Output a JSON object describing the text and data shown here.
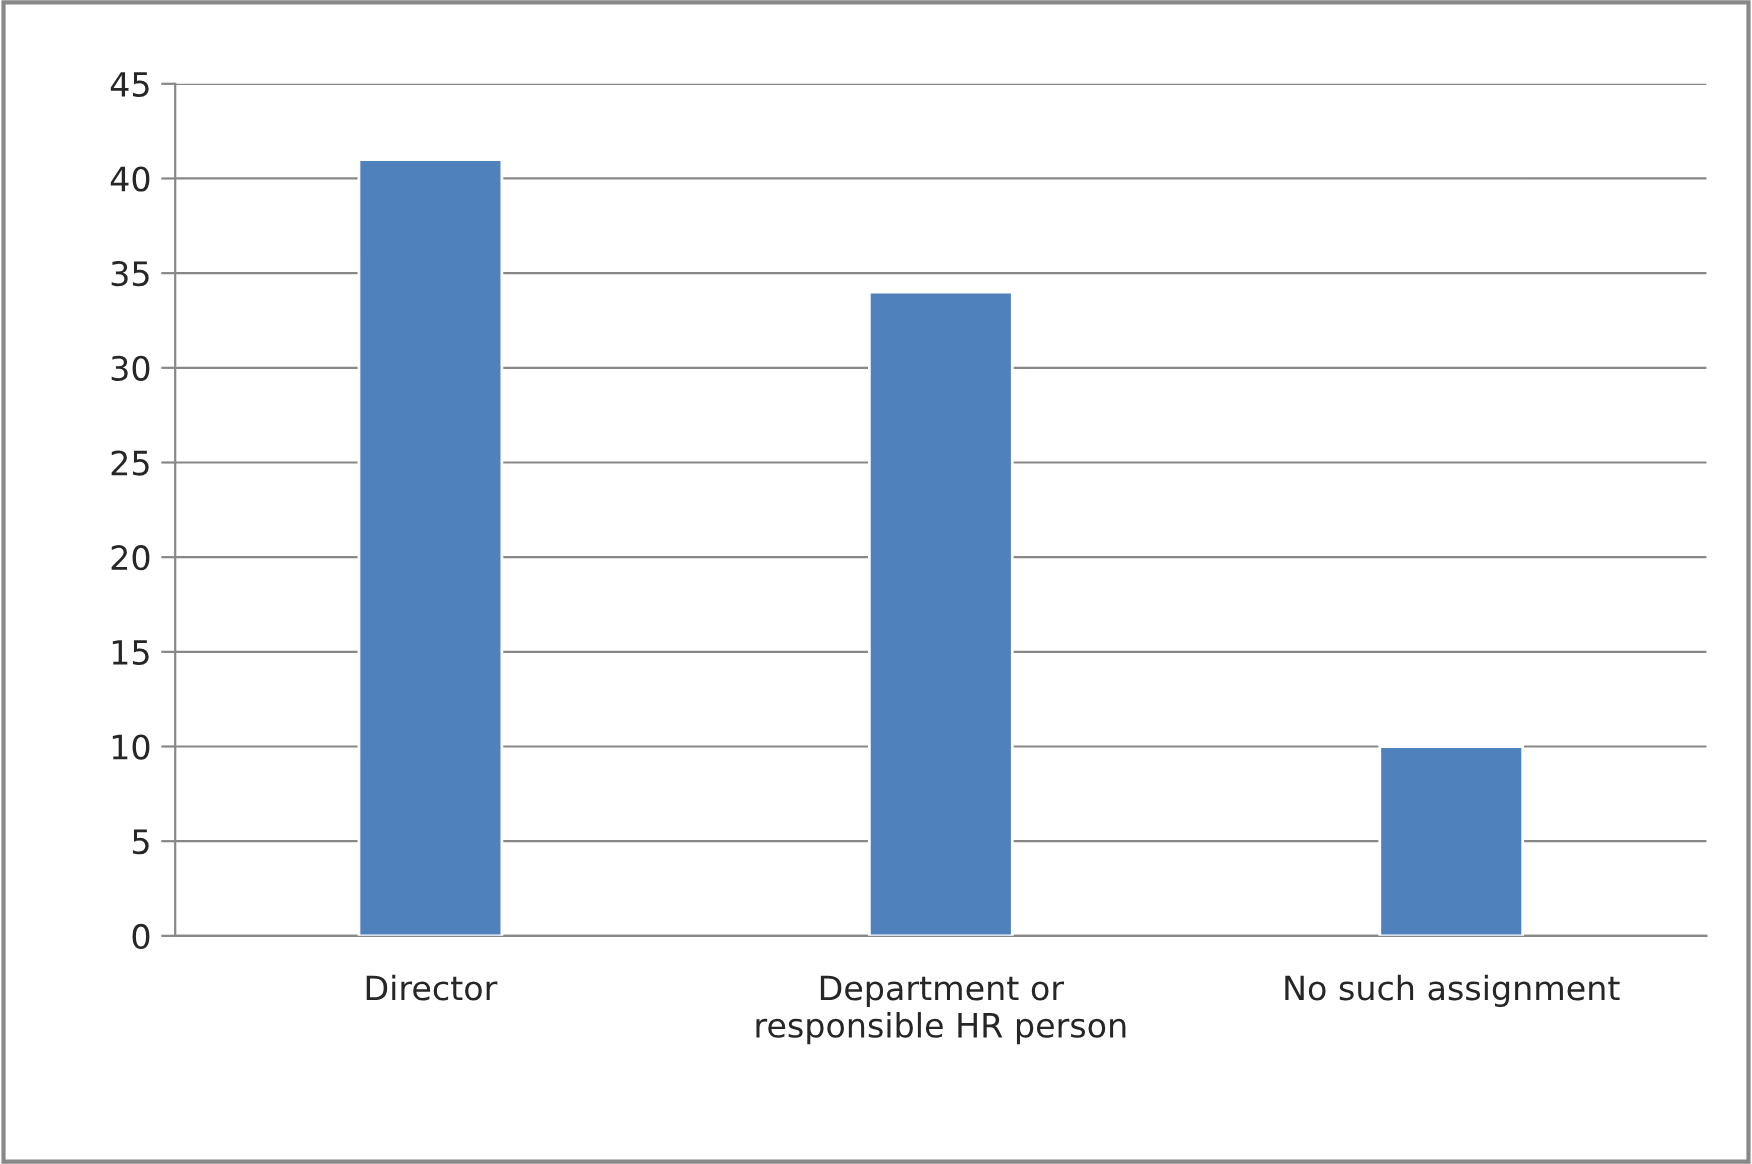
{
  "chart_data": {
    "type": "bar",
    "categories": [
      "Director",
      "Department or\nresponsible HR person",
      "No such assignment"
    ],
    "values": [
      41,
      34,
      10
    ],
    "color": "#4f81bd",
    "ylim": [
      0,
      45
    ],
    "yticks": [
      0,
      5,
      10,
      15,
      20,
      25,
      30,
      35,
      40,
      45
    ],
    "grid": "y"
  }
}
